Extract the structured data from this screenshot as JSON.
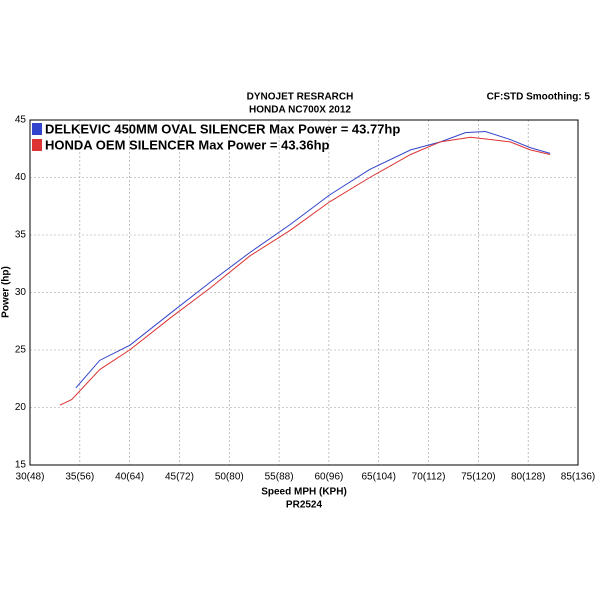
{
  "chart_data": {
    "type": "line",
    "title": "DYNOJET RESRARCH",
    "subtitle": "HONDA NC700X 2012",
    "annotation": "CF:STD Smoothing: 5",
    "xlabel": "Speed MPH (KPH)",
    "footnote": "PR2524",
    "ylabel": "Power (hp)",
    "xlim": [
      30,
      85
    ],
    "ylim": [
      15,
      45
    ],
    "xticks": [
      {
        "value": 30,
        "label": "30(48)"
      },
      {
        "value": 35,
        "label": "35(56)"
      },
      {
        "value": 40,
        "label": "40(64)"
      },
      {
        "value": 45,
        "label": "45(72)"
      },
      {
        "value": 50,
        "label": "50(80)"
      },
      {
        "value": 55,
        "label": "55(88)"
      },
      {
        "value": 60,
        "label": "60(96)"
      },
      {
        "value": 65,
        "label": "65(104)"
      },
      {
        "value": 70,
        "label": "70(112)"
      },
      {
        "value": 75,
        "label": "75(120)"
      },
      {
        "value": 80,
        "label": "80(128)"
      },
      {
        "value": 85,
        "label": "85(136)"
      }
    ],
    "yticks": [
      15,
      20,
      25,
      30,
      35,
      40,
      45
    ],
    "grid": true,
    "legend": "top-left",
    "series": [
      {
        "name": "DELKEVIC 450MM OVAL SILENCER Max Power = 43.77hp",
        "color": "#3344cc",
        "x": [
          34.6,
          37.0,
          40.0,
          44.1,
          48.1,
          52.1,
          56.1,
          60.1,
          64.1,
          68.2,
          71.2,
          73.7,
          75.7,
          78.2,
          80.2,
          82.2
        ],
        "values": [
          21.7,
          24.1,
          25.4,
          28.2,
          30.9,
          33.5,
          35.9,
          38.5,
          40.7,
          42.4,
          43.1,
          43.9,
          44.0,
          43.3,
          42.6,
          42.1
        ]
      },
      {
        "name": "HONDA OEM SILENCER Max Power = 43.36hp",
        "color": "#dd3333",
        "x": [
          33.0,
          34.2,
          37.0,
          40.0,
          44.1,
          48.1,
          52.1,
          56.1,
          60.1,
          64.1,
          68.2,
          71.2,
          74.2,
          76.2,
          78.2,
          80.2,
          82.2
        ],
        "values": [
          20.2,
          20.7,
          23.3,
          25.0,
          27.8,
          30.4,
          33.2,
          35.4,
          37.9,
          40.0,
          42.0,
          43.1,
          43.5,
          43.3,
          43.1,
          42.4,
          42.0
        ]
      }
    ]
  }
}
